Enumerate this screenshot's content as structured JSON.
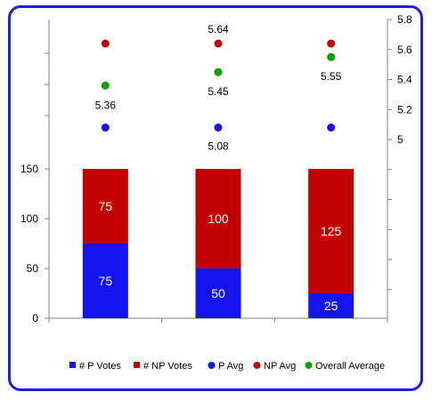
{
  "chart_data": {
    "type": "bar",
    "categories": [
      "",
      "",
      ""
    ],
    "bars": [
      {
        "name": "# P Votes",
        "color": "#1414f0",
        "values": [
          75,
          50,
          25
        ]
      },
      {
        "name": "# NP Votes",
        "color": "#c00000",
        "values": [
          75,
          100,
          125
        ]
      }
    ],
    "points": [
      {
        "name": "P Avg",
        "color": "#1414e6",
        "values": [
          5.08,
          5.08,
          5.08
        ],
        "labels": [
          "",
          "5.08",
          ""
        ]
      },
      {
        "name": "NP Avg",
        "color": "#c00000",
        "values": [
          5.64,
          5.64,
          5.64
        ],
        "labels": [
          "",
          "5.64",
          ""
        ]
      },
      {
        "name": "Overall Average",
        "color": "#00a000",
        "values": [
          5.36,
          5.45,
          5.55
        ],
        "labels": [
          "5.36",
          "5.45",
          "5.55"
        ]
      }
    ],
    "left_axis": {
      "ticks": [
        "0",
        "50",
        "100",
        "150"
      ],
      "tick_values": [
        0,
        50,
        100,
        150
      ]
    },
    "right_axis": {
      "ticks": [
        "5",
        "5.2",
        "5.4",
        "5.6",
        "5.8"
      ],
      "tick_values": [
        5,
        5.2,
        5.4,
        5.6,
        5.8
      ]
    },
    "legend_position": "bottom",
    "grid": false
  }
}
